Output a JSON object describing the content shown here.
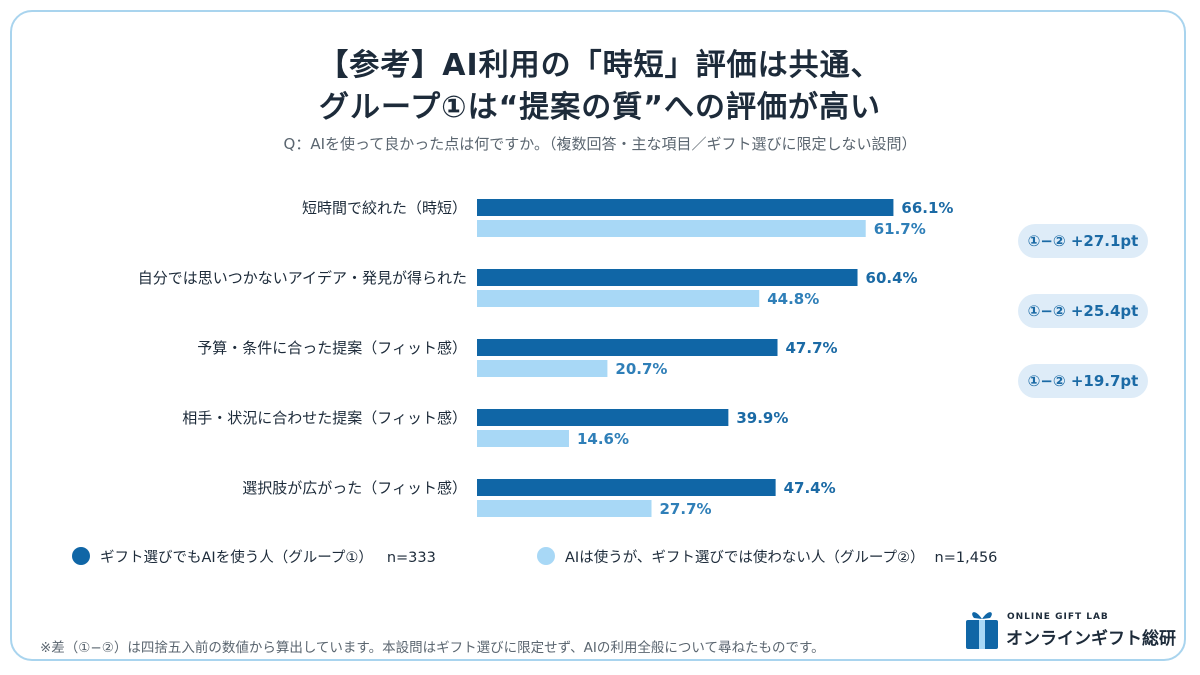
{
  "title_line1": "【参考】AI利用の「時短」評価は共通、",
  "title_line2": "グループ①は“提案の質”への評価が高い",
  "subtitle": "Q：AIを使って良かった点は何ですか。（複数回答・主な項目／ギフト選びに限定しない設問）",
  "colors": {
    "group1": "#1066a6",
    "group2": "#a8d8f6",
    "border": "#a9d4ee",
    "pill": "#deecf8"
  },
  "chart_data": {
    "type": "bar",
    "orientation": "horizontal",
    "categories": [
      "短時間で絞れた（時短）",
      "自分では思いつかないアイデア・発見が得られた",
      "予算・条件に合った提案（フィット感）",
      "相手・状況に合わせた提案（フィット感）",
      "選択肢が広がった（フィット感）"
    ],
    "series": [
      {
        "name": "ギフト選びでもAIを使う人（グループ①） n=333",
        "values": [
          66.1,
          60.4,
          47.7,
          39.9,
          47.4
        ],
        "labels": [
          "66.1%",
          "60.4%",
          "47.7%",
          "39.9%",
          "47.4%"
        ]
      },
      {
        "name": "AIは使うが、ギフト選びでは使わない人（グループ②） n=1,456",
        "values": [
          61.7,
          44.8,
          20.7,
          14.6,
          27.7
        ],
        "labels": [
          "61.7%",
          "44.8%",
          "20.7%",
          "14.6%",
          "27.7%"
        ]
      }
    ],
    "unit": "%",
    "xlim": [
      0,
      100
    ],
    "grid": false,
    "legend": "bottom-left",
    "differences": [
      {
        "category_index": 2,
        "label": "①−② +27.1pt"
      },
      {
        "category_index": 3,
        "label": "①−② +25.4pt"
      },
      {
        "category_index": 4,
        "label": "①−② +19.7pt"
      }
    ]
  },
  "legend": {
    "group1": "ギフト選びでもAIを使う人（グループ①）",
    "group1_n": "n=333",
    "group2": "AIは使うが、ギフト選びでは使わない人（グループ②）",
    "group2_n": "n=1,456"
  },
  "footnote": "※差（①−②）は四捨五入前の数値から算出しています。本設問はギフト選びに限定せず、AIの利用全般について尋ねたものです。",
  "logo": {
    "small": "ONLINE GIFT LAB",
    "main": "オンラインギフト総研"
  }
}
